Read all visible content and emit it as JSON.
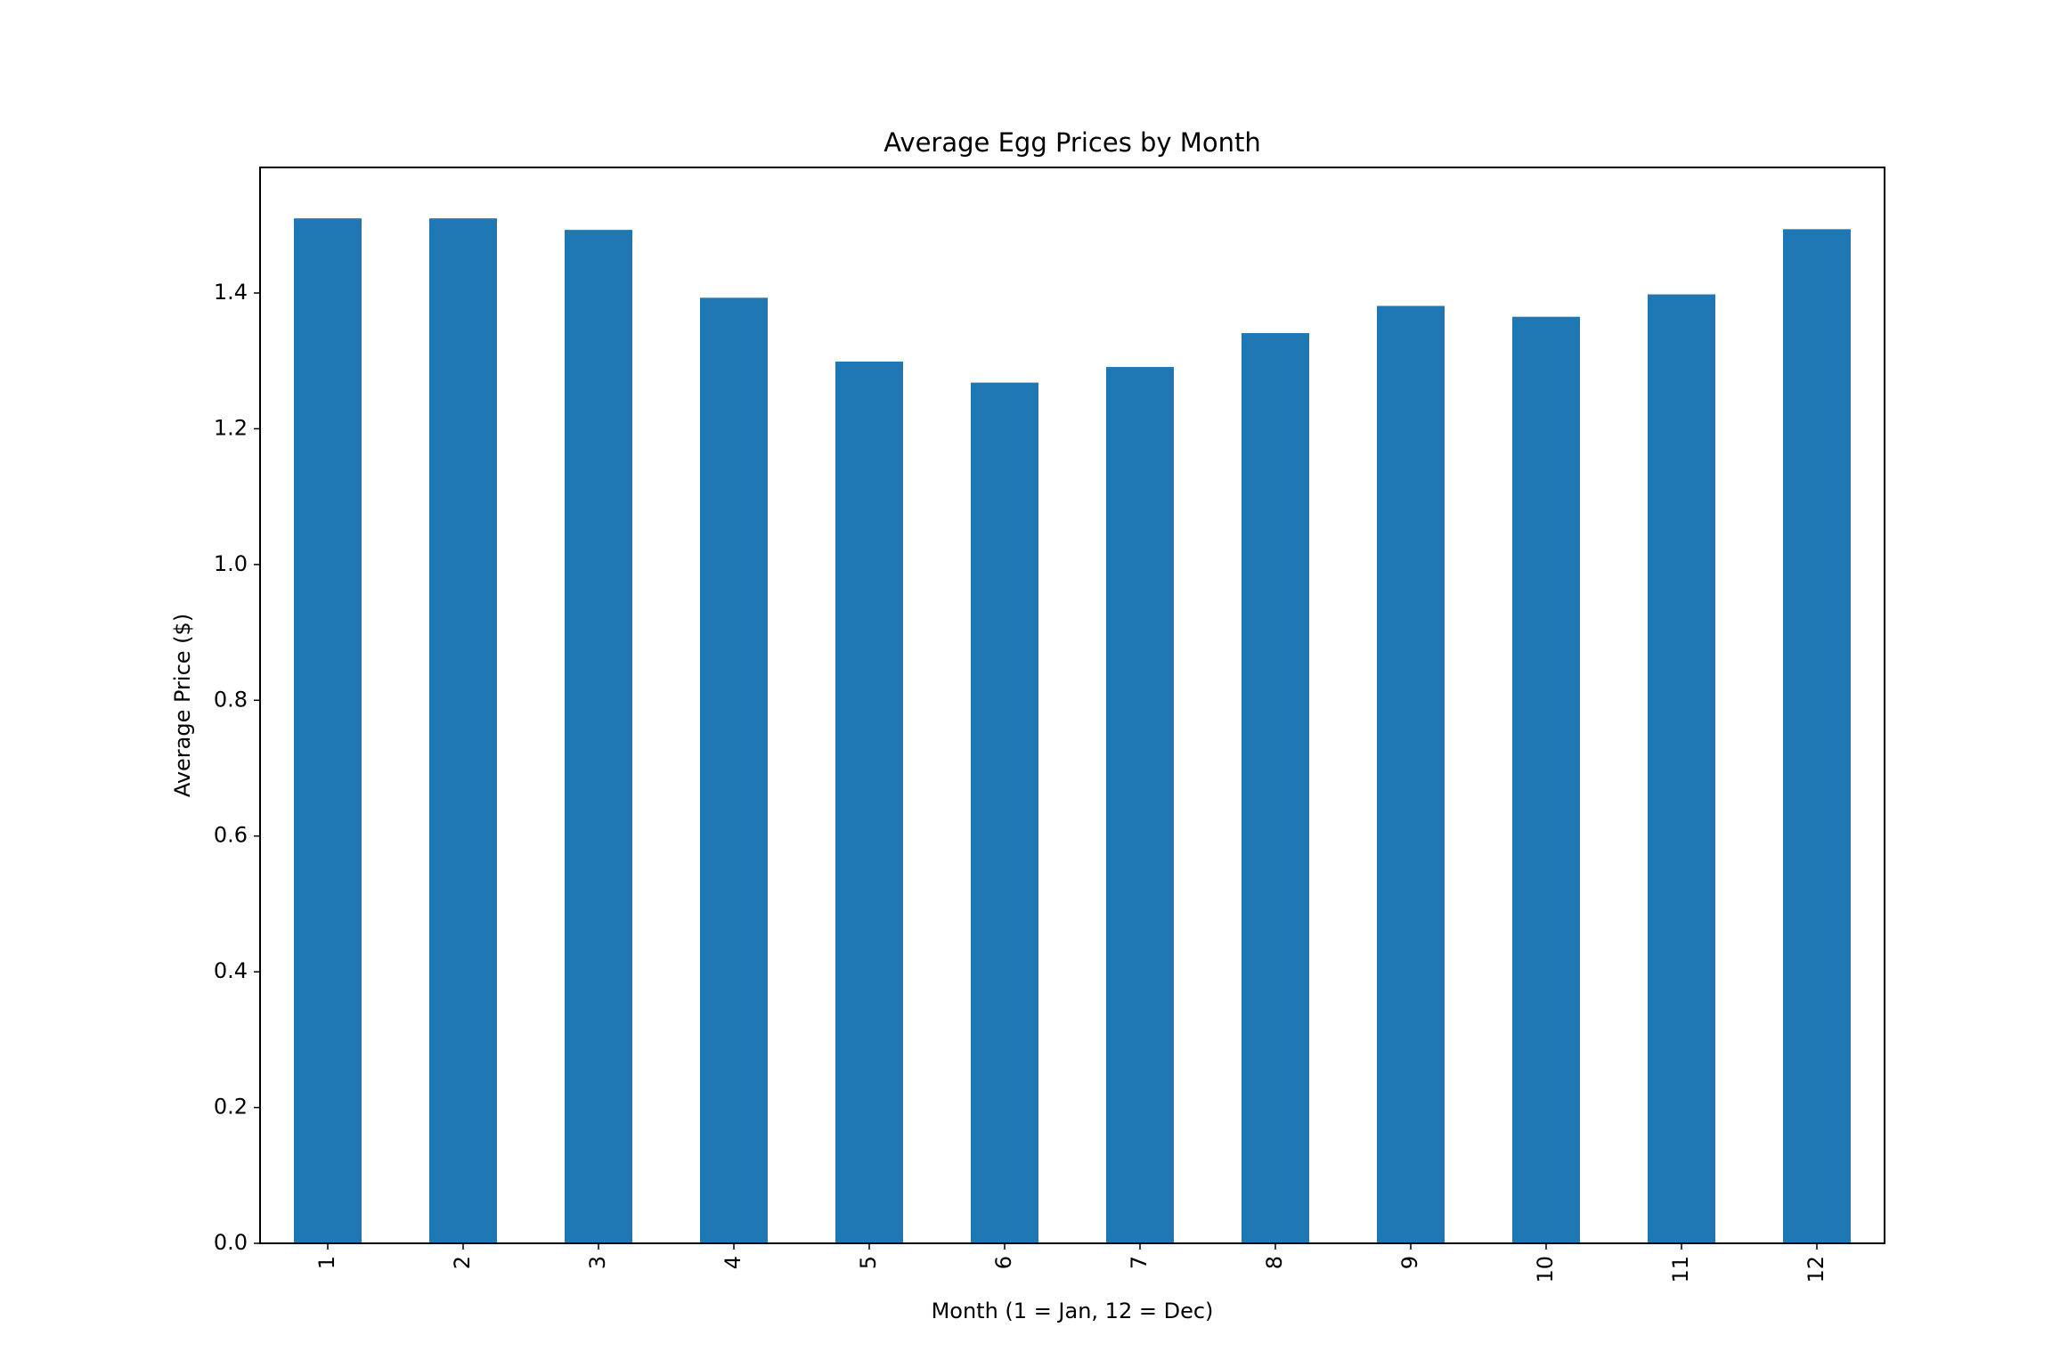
{
  "chart_data": {
    "type": "bar",
    "title": "Average Egg Prices by Month",
    "xlabel": "Month (1 = Jan, 12 = Dec)",
    "ylabel": "Average Price ($)",
    "categories": [
      "1",
      "2",
      "3",
      "4",
      "5",
      "6",
      "7",
      "8",
      "9",
      "10",
      "11",
      "12"
    ],
    "values": [
      1.51,
      1.51,
      1.493,
      1.393,
      1.299,
      1.268,
      1.291,
      1.341,
      1.381,
      1.365,
      1.398,
      1.494
    ],
    "yticks": [
      "0.0",
      "0.2",
      "0.4",
      "0.6",
      "0.8",
      "1.0",
      "1.2",
      "1.4"
    ],
    "ylim": [
      0,
      1.585
    ],
    "grid": false,
    "legend": false,
    "bar_color": "#1f77b4"
  }
}
